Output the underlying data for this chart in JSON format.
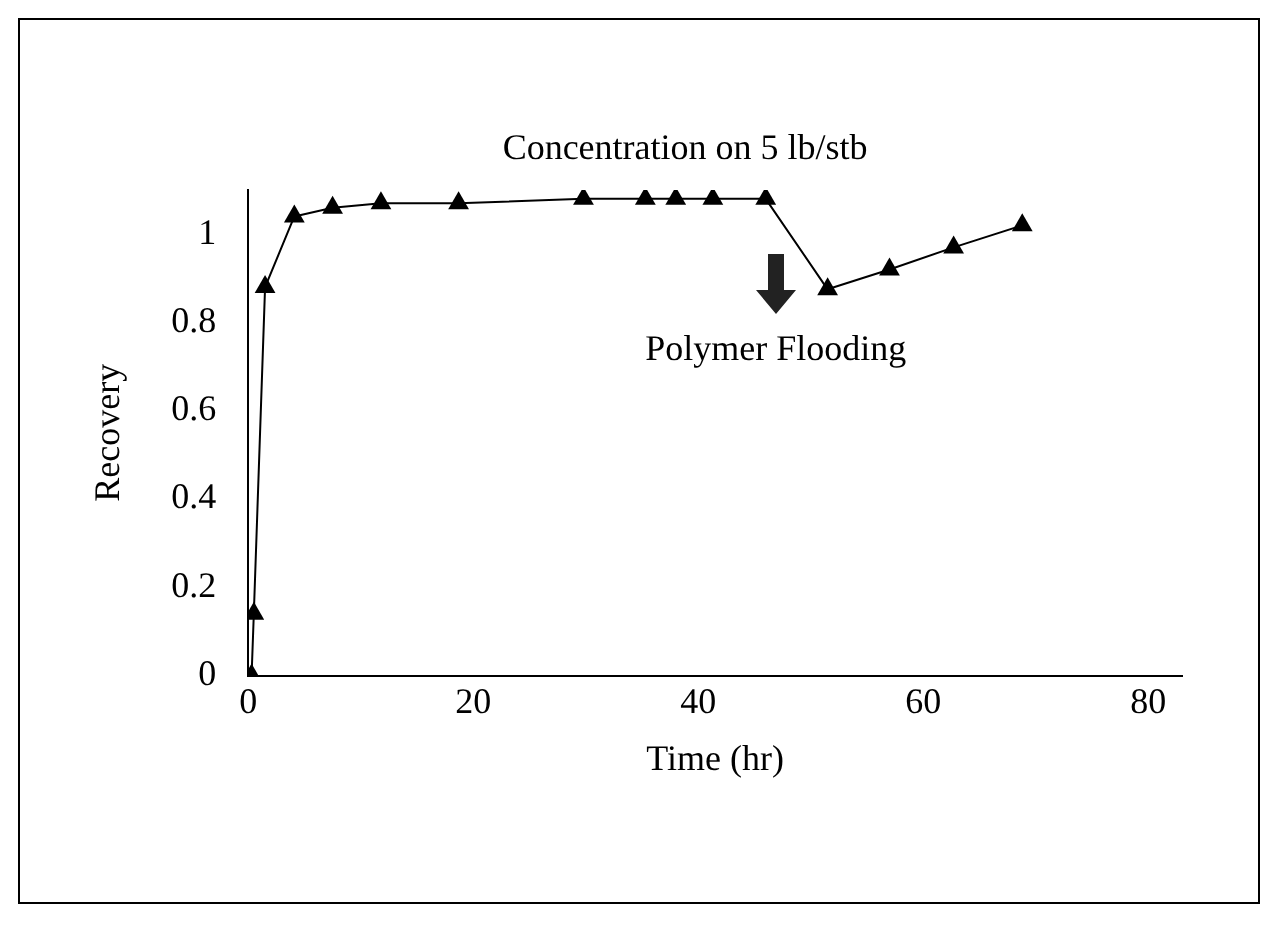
{
  "chart_data": {
    "type": "line",
    "title": "Concentration on 5 lb/stb",
    "xlabel": "Time (hr)",
    "ylabel": "Recovery",
    "x": [
      0.3,
      0.5,
      1.5,
      4.1,
      7.5,
      11.8,
      18.7,
      29.8,
      35.3,
      38,
      41.3,
      46,
      51.5,
      57,
      62.7,
      68.8
    ],
    "series": [
      {
        "color": "#000000",
        "values": [
          0,
          0.14,
          0.88,
          1.04,
          1.06,
          1.07,
          1.07,
          1.08,
          1.08,
          1.08,
          1.08,
          1.08,
          0.875,
          0.92,
          0.97,
          1.02
        ]
      }
    ],
    "xlim": [
      0,
      83
    ],
    "xticks": [
      0,
      20,
      40,
      60,
      80
    ],
    "ylim": [
      0,
      1.1
    ],
    "yticks": [
      0,
      0.2,
      0.4,
      0.6,
      0.8,
      1
    ],
    "annotations": [
      "Polymer Flooding"
    ],
    "marker": "triangle",
    "line_style": "solid",
    "grid": false,
    "legend": false
  }
}
